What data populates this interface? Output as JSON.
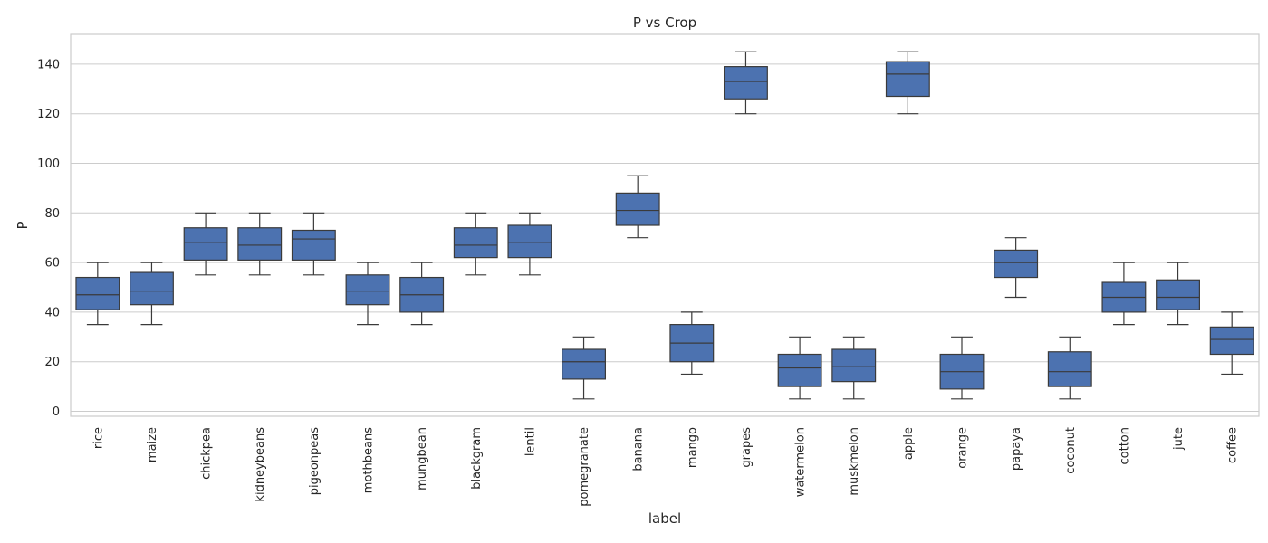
{
  "chart_data": {
    "type": "box",
    "title": "P vs Crop",
    "xlabel": "label",
    "ylabel": "P",
    "ylim": [
      -2,
      152
    ],
    "yticks": [
      0,
      20,
      40,
      60,
      80,
      100,
      120,
      140
    ],
    "grid": true,
    "box_color": "#4c72b0",
    "line_color": "#3a3a3a",
    "categories": [
      "rice",
      "maize",
      "chickpea",
      "kidneybeans",
      "pigeonpeas",
      "mothbeans",
      "mungbean",
      "blackgram",
      "lentil",
      "pomegranate",
      "banana",
      "mango",
      "grapes",
      "watermelon",
      "muskmelon",
      "apple",
      "orange",
      "papaya",
      "coconut",
      "cotton",
      "jute",
      "coffee"
    ],
    "boxes": [
      {
        "label": "rice",
        "whislo": 35,
        "q1": 41,
        "med": 47,
        "q3": 54,
        "whishi": 60
      },
      {
        "label": "maize",
        "whislo": 35,
        "q1": 43,
        "med": 48.5,
        "q3": 56,
        "whishi": 60
      },
      {
        "label": "chickpea",
        "whislo": 55,
        "q1": 61,
        "med": 68,
        "q3": 74,
        "whishi": 80
      },
      {
        "label": "kidneybeans",
        "whislo": 55,
        "q1": 61,
        "med": 67,
        "q3": 74,
        "whishi": 80
      },
      {
        "label": "pigeonpeas",
        "whislo": 55,
        "q1": 61,
        "med": 69.5,
        "q3": 73,
        "whishi": 80
      },
      {
        "label": "mothbeans",
        "whislo": 35,
        "q1": 43,
        "med": 48.5,
        "q3": 55,
        "whishi": 60
      },
      {
        "label": "mungbean",
        "whislo": 35,
        "q1": 40,
        "med": 47,
        "q3": 54,
        "whishi": 60
      },
      {
        "label": "blackgram",
        "whislo": 55,
        "q1": 62,
        "med": 67,
        "q3": 74,
        "whishi": 80
      },
      {
        "label": "lentil",
        "whislo": 55,
        "q1": 62,
        "med": 68,
        "q3": 75,
        "whishi": 80
      },
      {
        "label": "pomegranate",
        "whislo": 5,
        "q1": 13,
        "med": 20,
        "q3": 25,
        "whishi": 30
      },
      {
        "label": "banana",
        "whislo": 70,
        "q1": 75,
        "med": 81,
        "q3": 88,
        "whishi": 95
      },
      {
        "label": "mango",
        "whislo": 15,
        "q1": 20,
        "med": 27.5,
        "q3": 35,
        "whishi": 40
      },
      {
        "label": "grapes",
        "whislo": 120,
        "q1": 126,
        "med": 133,
        "q3": 139,
        "whishi": 145
      },
      {
        "label": "watermelon",
        "whislo": 5,
        "q1": 10,
        "med": 17.5,
        "q3": 23,
        "whishi": 30
      },
      {
        "label": "muskmelon",
        "whislo": 5,
        "q1": 12,
        "med": 18,
        "q3": 25,
        "whishi": 30
      },
      {
        "label": "apple",
        "whislo": 120,
        "q1": 127,
        "med": 136,
        "q3": 141,
        "whishi": 145
      },
      {
        "label": "orange",
        "whislo": 5,
        "q1": 9,
        "med": 16,
        "q3": 23,
        "whishi": 30
      },
      {
        "label": "papaya",
        "whislo": 46,
        "q1": 54,
        "med": 60,
        "q3": 65,
        "whishi": 70
      },
      {
        "label": "coconut",
        "whislo": 5,
        "q1": 10,
        "med": 16,
        "q3": 24,
        "whishi": 30
      },
      {
        "label": "cotton",
        "whislo": 35,
        "q1": 40,
        "med": 46,
        "q3": 52,
        "whishi": 60
      },
      {
        "label": "jute",
        "whislo": 35,
        "q1": 41,
        "med": 46,
        "q3": 53,
        "whishi": 60
      },
      {
        "label": "coffee",
        "whislo": 15,
        "q1": 23,
        "med": 29,
        "q3": 34,
        "whishi": 40
      }
    ]
  }
}
